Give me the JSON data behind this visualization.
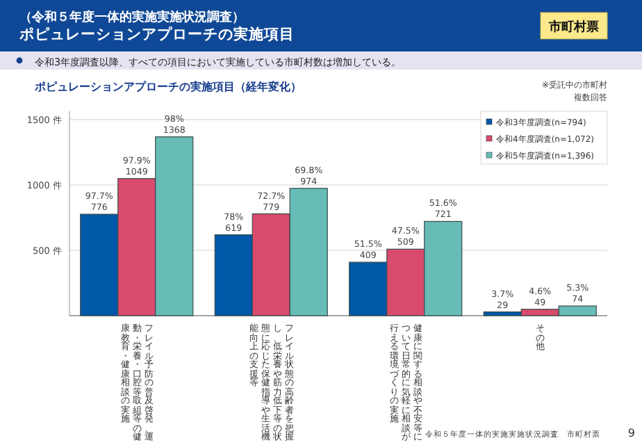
{
  "chart_data": {
    "type": "bar",
    "title": "ポピュレーションアプローチの実施項目",
    "subtitle": "令和3年度調査以降、すべての項目において実施している市町村数は増加している。",
    "annotations": [
      "市町村票",
      "ポピュレーションアプローチの実施項目（経年変化）",
      "※受託中の市町村",
      "複数回答",
      "令和５年度一体的実施実施状況調査　市町村票",
      "9",
      "（令和５年度一体的実施実施状況調査）"
    ],
    "categories": [
      "フレイル予防の普及啓発、運動・栄養・口腔等取組等の健康教育・健康相談の実施",
      "フレイル状態の高齢者を把握し、低栄養や筋力低下等の状態に応じた保健指導や生活機能向上の支援等",
      "健康に関する相談や不安等について日常的に気軽に相談が行える環境づくりの実施",
      "その他"
    ],
    "series": [
      {
        "name": "令和3年度調査(n=794)",
        "color": "#0058a9",
        "values": [
          776,
          619,
          409,
          29
        ],
        "value_labels": [
          "97.7%\n776",
          "78%\n619",
          "51.5%\n409",
          "3.7%\n29"
        ]
      },
      {
        "name": "令和4年度調査(n=1,072)",
        "color": "#d84b6d",
        "values": [
          1049,
          779,
          509,
          49
        ],
        "value_labels": [
          "97.9%\n1049",
          "72.7%\n779",
          "47.5%\n509",
          "4.6%\n49"
        ]
      },
      {
        "name": "令和5年度調査(n=1,396)",
        "color": "#67bcb6",
        "values": [
          1368,
          974,
          721,
          74
        ],
        "value_labels": [
          "98%\n1368",
          "69.8%\n974",
          "51.6%\n721",
          "5.3%\n74"
        ]
      }
    ],
    "ylim": [
      0,
      1500
    ],
    "yticks": [
      {
        "value": 500,
        "label": "500 件"
      },
      {
        "value": 1000,
        "label": "1000 件"
      },
      {
        "value": 1500,
        "label": "1500 件"
      }
    ],
    "grid": "y",
    "legend": "top right"
  }
}
